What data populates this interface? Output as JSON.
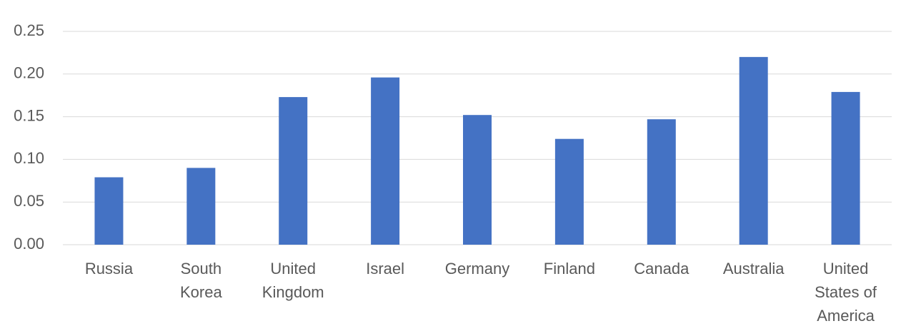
{
  "chart_data": {
    "type": "bar",
    "categories": [
      "Russia",
      "South Korea",
      "United Kingdom",
      "Israel",
      "Germany",
      "Finland",
      "Canada",
      "Australia",
      "United States of America"
    ],
    "values": [
      0.079,
      0.09,
      0.173,
      0.196,
      0.152,
      0.124,
      0.147,
      0.22,
      0.179
    ],
    "color": "#4472c4",
    "ylim": [
      0,
      0.25
    ],
    "yticks": [
      {
        "value": 0,
        "label": "0.00"
      },
      0.05,
      {
        "value": 0.1,
        "label": "0.10"
      },
      0.15,
      {
        "value": 0.2,
        "label": "0.20"
      },
      0.25
    ],
    "grid": true
  }
}
